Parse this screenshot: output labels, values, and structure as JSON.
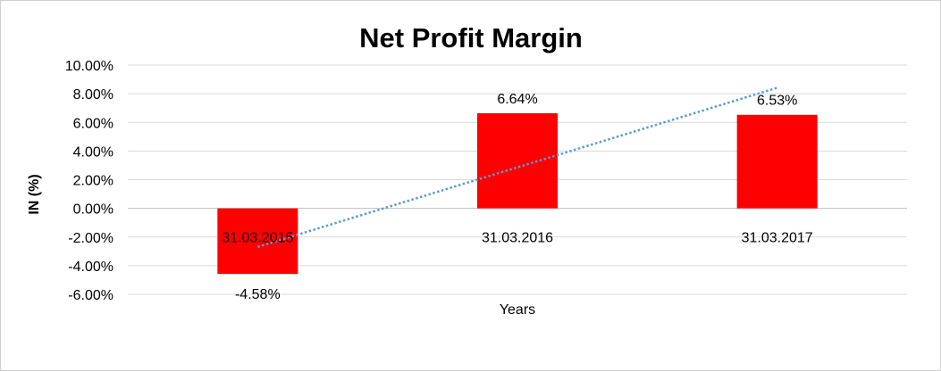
{
  "chart_data": {
    "type": "bar",
    "title": "Net Profit Margin",
    "xlabel": "Years",
    "ylabel": "IN (%)",
    "categories": [
      "31.03.2015",
      "31.03.2016",
      "31.03.2017"
    ],
    "series": [
      {
        "values": [
          -4.58,
          6.64,
          6.53
        ],
        "data_labels": [
          "-4.58%",
          "6.64%",
          "6.53%"
        ],
        "color": "#ff0000"
      }
    ],
    "trendline": {
      "type": "linear",
      "style": "dotted",
      "color": "#5b9bd5"
    },
    "ylim": [
      -6,
      10
    ],
    "yticks": [
      10,
      8,
      6,
      4,
      2,
      0,
      -2,
      -4,
      -6
    ],
    "ytick_labels": [
      "10.00%",
      "8.00%",
      "6.00%",
      "4.00%",
      "2.00%",
      "0.00%",
      "-2.00%",
      "-4.00%",
      "-6.00%"
    ],
    "grid": true,
    "legend": "none"
  }
}
